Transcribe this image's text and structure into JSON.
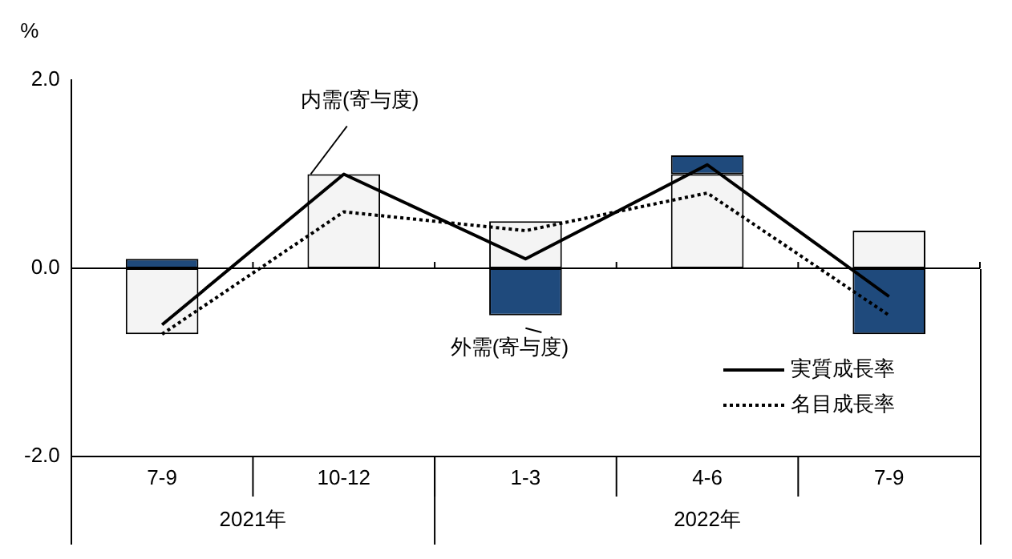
{
  "chart_data": {
    "type": "bar",
    "ylabel": "%",
    "categories": [
      "7-9",
      "10-12",
      "1-3",
      "4-6",
      "7-9"
    ],
    "stacked": true,
    "ylim": [
      -2,
      2
    ],
    "yticks": [
      {
        "value": -2,
        "label": "-2.0"
      },
      {
        "value": 0,
        "label": "0.0"
      },
      {
        "value": 2,
        "label": "2.0"
      }
    ],
    "grid": false,
    "legend": "bottom right",
    "series": [
      {
        "name": "内需(寄与度)",
        "color": "#f4f4f4",
        "values": [
          -0.7,
          1.0,
          0.5,
          1.0,
          0.4
        ]
      },
      {
        "name": "外需(寄与度)",
        "color": "#1f4a7c",
        "values": [
          0.1,
          0,
          -0.5,
          0.2,
          -0.7
        ]
      },
      {
        "name": "実質成長率",
        "type": "line",
        "color": "#000000",
        "line_style": "solid",
        "values": [
          -0.6,
          1.0,
          0.1,
          1.1,
          -0.3
        ]
      },
      {
        "name": "名目成長率",
        "type": "line",
        "color": "#000000",
        "line_style": "dotted",
        "values": [
          -0.7,
          0.6,
          0.4,
          0.8,
          -0.5
        ]
      }
    ],
    "ref_lines": [
      {
        "axis": "y",
        "value": 0
      }
    ],
    "annotations": [
      "2021年",
      "2022年"
    ]
  }
}
